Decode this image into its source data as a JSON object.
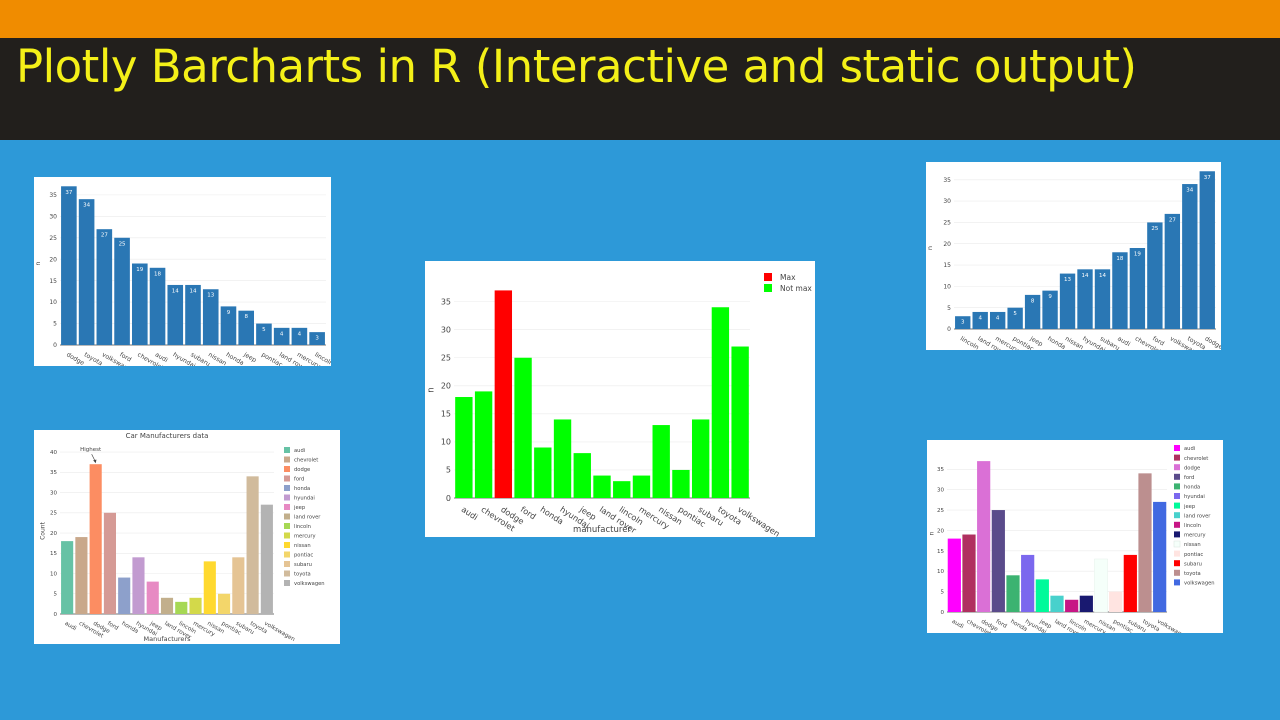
{
  "header": {
    "title": "Plotly Barcharts in R (Interactive and static output)"
  },
  "chart_data": [
    {
      "id": "p1",
      "type": "bar",
      "title": "",
      "xlabel": "",
      "ylabel": "n",
      "ylim": [
        0,
        38
      ],
      "yticks": [
        0,
        5,
        10,
        15,
        20,
        25,
        30,
        35
      ],
      "categories": [
        "dodge",
        "toyota",
        "volkswagen",
        "ford",
        "chevrolet",
        "audi",
        "hyundai",
        "subaru",
        "nissan",
        "honda",
        "jeep",
        "pontiac",
        "land rover",
        "mercury",
        "lincoln"
      ],
      "values": [
        37,
        34,
        27,
        25,
        19,
        18,
        14,
        14,
        13,
        9,
        8,
        5,
        4,
        4,
        3
      ],
      "bar_color": "#2a77b4",
      "data_labels": true
    },
    {
      "id": "p2",
      "type": "bar",
      "title": "",
      "xlabel": "",
      "ylabel": "n",
      "ylim": [
        0,
        38
      ],
      "yticks": [
        0,
        5,
        10,
        15,
        20,
        25,
        30,
        35
      ],
      "categories": [
        "lincoln",
        "land rover",
        "mercury",
        "pontiac",
        "jeep",
        "honda",
        "nissan",
        "hyundai",
        "subaru",
        "audi",
        "chevrolet",
        "ford",
        "volkswagen",
        "toyota",
        "dodge"
      ],
      "values": [
        3,
        4,
        4,
        5,
        8,
        9,
        13,
        14,
        14,
        18,
        19,
        25,
        27,
        34,
        37
      ],
      "bar_color": "#2a77b4",
      "data_labels": true
    },
    {
      "id": "p3",
      "type": "bar",
      "title": "",
      "xlabel": "manufacturer",
      "ylabel": "n",
      "ylim": [
        0,
        38.5
      ],
      "yticks": [
        0,
        5,
        10,
        15,
        20,
        25,
        30,
        35
      ],
      "categories": [
        "audi",
        "chevrolet",
        "dodge",
        "ford",
        "honda",
        "hyundai",
        "jeep",
        "land rover",
        "lincoln",
        "mercury",
        "nissan",
        "pontiac",
        "subaru",
        "toyota",
        "volkswagen"
      ],
      "values": [
        18,
        19,
        37,
        25,
        9,
        14,
        8,
        4,
        3,
        4,
        13,
        5,
        14,
        34,
        27
      ],
      "bar_groups": [
        "Not max",
        "Not max",
        "Max",
        "Not max",
        "Not max",
        "Not max",
        "Not max",
        "Not max",
        "Not max",
        "Not max",
        "Not max",
        "Not max",
        "Not max",
        "Not max",
        "Not max"
      ],
      "legend": [
        {
          "name": "Max",
          "color": "#ff0000"
        },
        {
          "name": "Not max",
          "color": "#00ff00"
        }
      ],
      "legend_position": "top-right"
    },
    {
      "id": "p4",
      "type": "bar",
      "title": "Car Manufacturers data",
      "xlabel": "Manufacturers",
      "ylabel": "Count",
      "ylim": [
        0,
        41
      ],
      "yticks": [
        0,
        5,
        10,
        15,
        20,
        25,
        30,
        35,
        40
      ],
      "categories": [
        "audi",
        "chevrolet",
        "dodge",
        "ford",
        "honda",
        "hyundai",
        "jeep",
        "land rover",
        "lincoln",
        "mercury",
        "nissan",
        "pontiac",
        "subaru",
        "toyota",
        "volkswagen"
      ],
      "values": [
        18,
        19,
        37,
        25,
        9,
        14,
        8,
        4,
        3,
        4,
        13,
        5,
        14,
        34,
        27
      ],
      "colors": [
        "#66c2a5",
        "#c9a88b",
        "#fc8d62",
        "#d59a95",
        "#8da0cb",
        "#c29bd0",
        "#e78ac3",
        "#c2af8c",
        "#a6d854",
        "#d3d94a",
        "#ffd92f",
        "#f3d66a",
        "#e5c494",
        "#d1bb9c",
        "#b3b3b3"
      ],
      "annotation": {
        "text": "Highest",
        "category": "dodge"
      },
      "legend_position": "right"
    },
    {
      "id": "p5",
      "type": "bar",
      "title": "",
      "xlabel": "",
      "ylabel": "n",
      "ylim": [
        0,
        38.5
      ],
      "yticks": [
        0,
        5,
        10,
        15,
        20,
        25,
        30,
        35
      ],
      "categories": [
        "audi",
        "chevrolet",
        "dodge",
        "ford",
        "honda",
        "hyundai",
        "jeep",
        "land rover",
        "lincoln",
        "mercury",
        "nissan",
        "pontiac",
        "subaru",
        "toyota",
        "volkswagen"
      ],
      "values": [
        18,
        19,
        37,
        25,
        9,
        14,
        8,
        4,
        3,
        4,
        13,
        5,
        14,
        34,
        27
      ],
      "colors": [
        "#ff00ff",
        "#b03060",
        "#da70d6",
        "#5a4b8b",
        "#3cb371",
        "#7b68ee",
        "#00fa9a",
        "#48d1cc",
        "#c71585",
        "#191970",
        "#f5fffa",
        "#ffe4e1",
        "#ff0000",
        "#bc8f8f",
        "#4169e1"
      ],
      "legend_position": "right"
    }
  ]
}
